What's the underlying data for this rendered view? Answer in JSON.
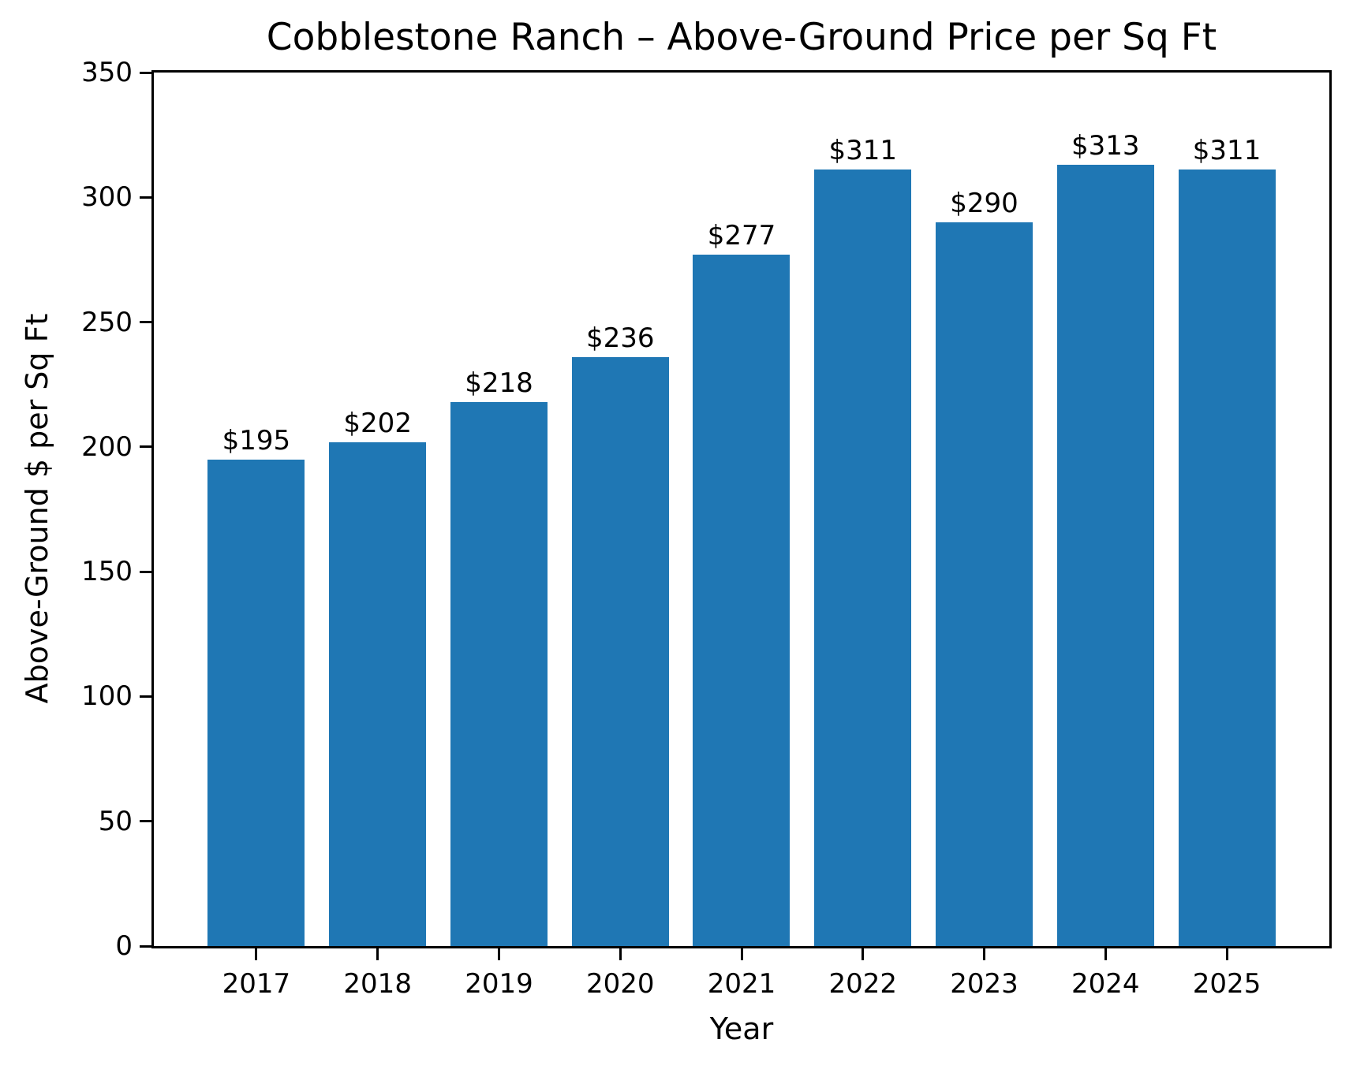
{
  "chart_data": {
    "type": "bar",
    "title": "Cobblestone Ranch – Above-Ground Price per Sq Ft",
    "xlabel": "Year",
    "ylabel": "Above-Ground $ per Sq Ft",
    "categories": [
      "2017",
      "2018",
      "2019",
      "2020",
      "2021",
      "2022",
      "2023",
      "2024",
      "2025"
    ],
    "values": [
      195,
      202,
      218,
      236,
      277,
      311,
      290,
      313,
      311
    ],
    "bar_labels": [
      "$195",
      "$202",
      "$218",
      "$236",
      "$277",
      "$311",
      "$290",
      "$313",
      "$311"
    ],
    "ylim": [
      0,
      350
    ],
    "yticks": [
      0,
      50,
      100,
      150,
      200,
      250,
      300,
      350
    ],
    "bar_color": "#1f77b4",
    "axis_color": "#000000",
    "background_color": "#ffffff",
    "grid": false,
    "legend_position": "none"
  }
}
